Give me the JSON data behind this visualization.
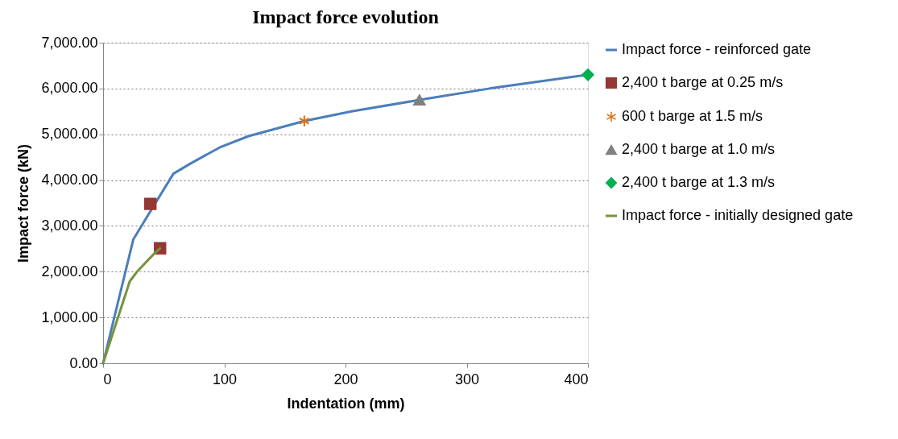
{
  "chart_data": {
    "type": "line",
    "title": "Impact force evolution",
    "xlabel": "Indentation (mm)",
    "ylabel": "Impact force (kN)",
    "xlim": [
      0,
      400
    ],
    "xticks": [
      0,
      100,
      200,
      300,
      400
    ],
    "ylim": [
      0,
      7000
    ],
    "yticks": [
      {
        "value": 0,
        "label": "0.00"
      },
      {
        "value": 1000,
        "label": "1,000.00"
      },
      {
        "value": 2000,
        "label": "2,000.00"
      },
      {
        "value": 3000,
        "label": "3,000.00"
      },
      {
        "value": 4000,
        "label": "4,000.00"
      },
      {
        "value": 5000,
        "label": "5,000.00"
      },
      {
        "value": 6000,
        "label": "6,000.00"
      },
      {
        "value": 7000,
        "label": "7,000.00"
      }
    ],
    "grid": "y",
    "legend": "right",
    "line_style": "solid",
    "series": [
      {
        "name": "Impact force - reinforced gate",
        "marker": "none",
        "color": "#4a7ebb",
        "x": [
          0,
          25,
          58,
          72,
          96,
          120,
          166,
          205,
          261,
          319,
          400
        ],
        "values": [
          0,
          2710,
          4140,
          4360,
          4710,
          4960,
          5290,
          5500,
          5750,
          6000,
          6300
        ]
      },
      {
        "name": "2,400 t barge at 0.25 m/s",
        "type": "scatter",
        "marker": "square",
        "color": "#953735",
        "x": [
          39,
          47
        ],
        "values": [
          3480,
          2510
        ]
      },
      {
        "name": "600 t barge at 1.5 m/s",
        "type": "scatter",
        "marker": "cross",
        "color": "#e46c0a",
        "x": [
          166
        ],
        "values": [
          5290
        ]
      },
      {
        "name": "2,400 t barge at 1.0 m/s",
        "type": "scatter",
        "marker": "triangle",
        "color": "#7f7f7f",
        "x": [
          261
        ],
        "values": [
          5750
        ]
      },
      {
        "name": "2,400 t barge at 1.3 m/s",
        "type": "scatter",
        "marker": "diamond",
        "color": "#00b050",
        "x": [
          400
        ],
        "values": [
          6300
        ]
      },
      {
        "name": "Impact force - initially designed gate",
        "marker": "none",
        "color": "#77933c",
        "x": [
          0,
          22,
          28,
          42,
          47
        ],
        "values": [
          0,
          1790,
          2000,
          2390,
          2510
        ]
      }
    ]
  }
}
